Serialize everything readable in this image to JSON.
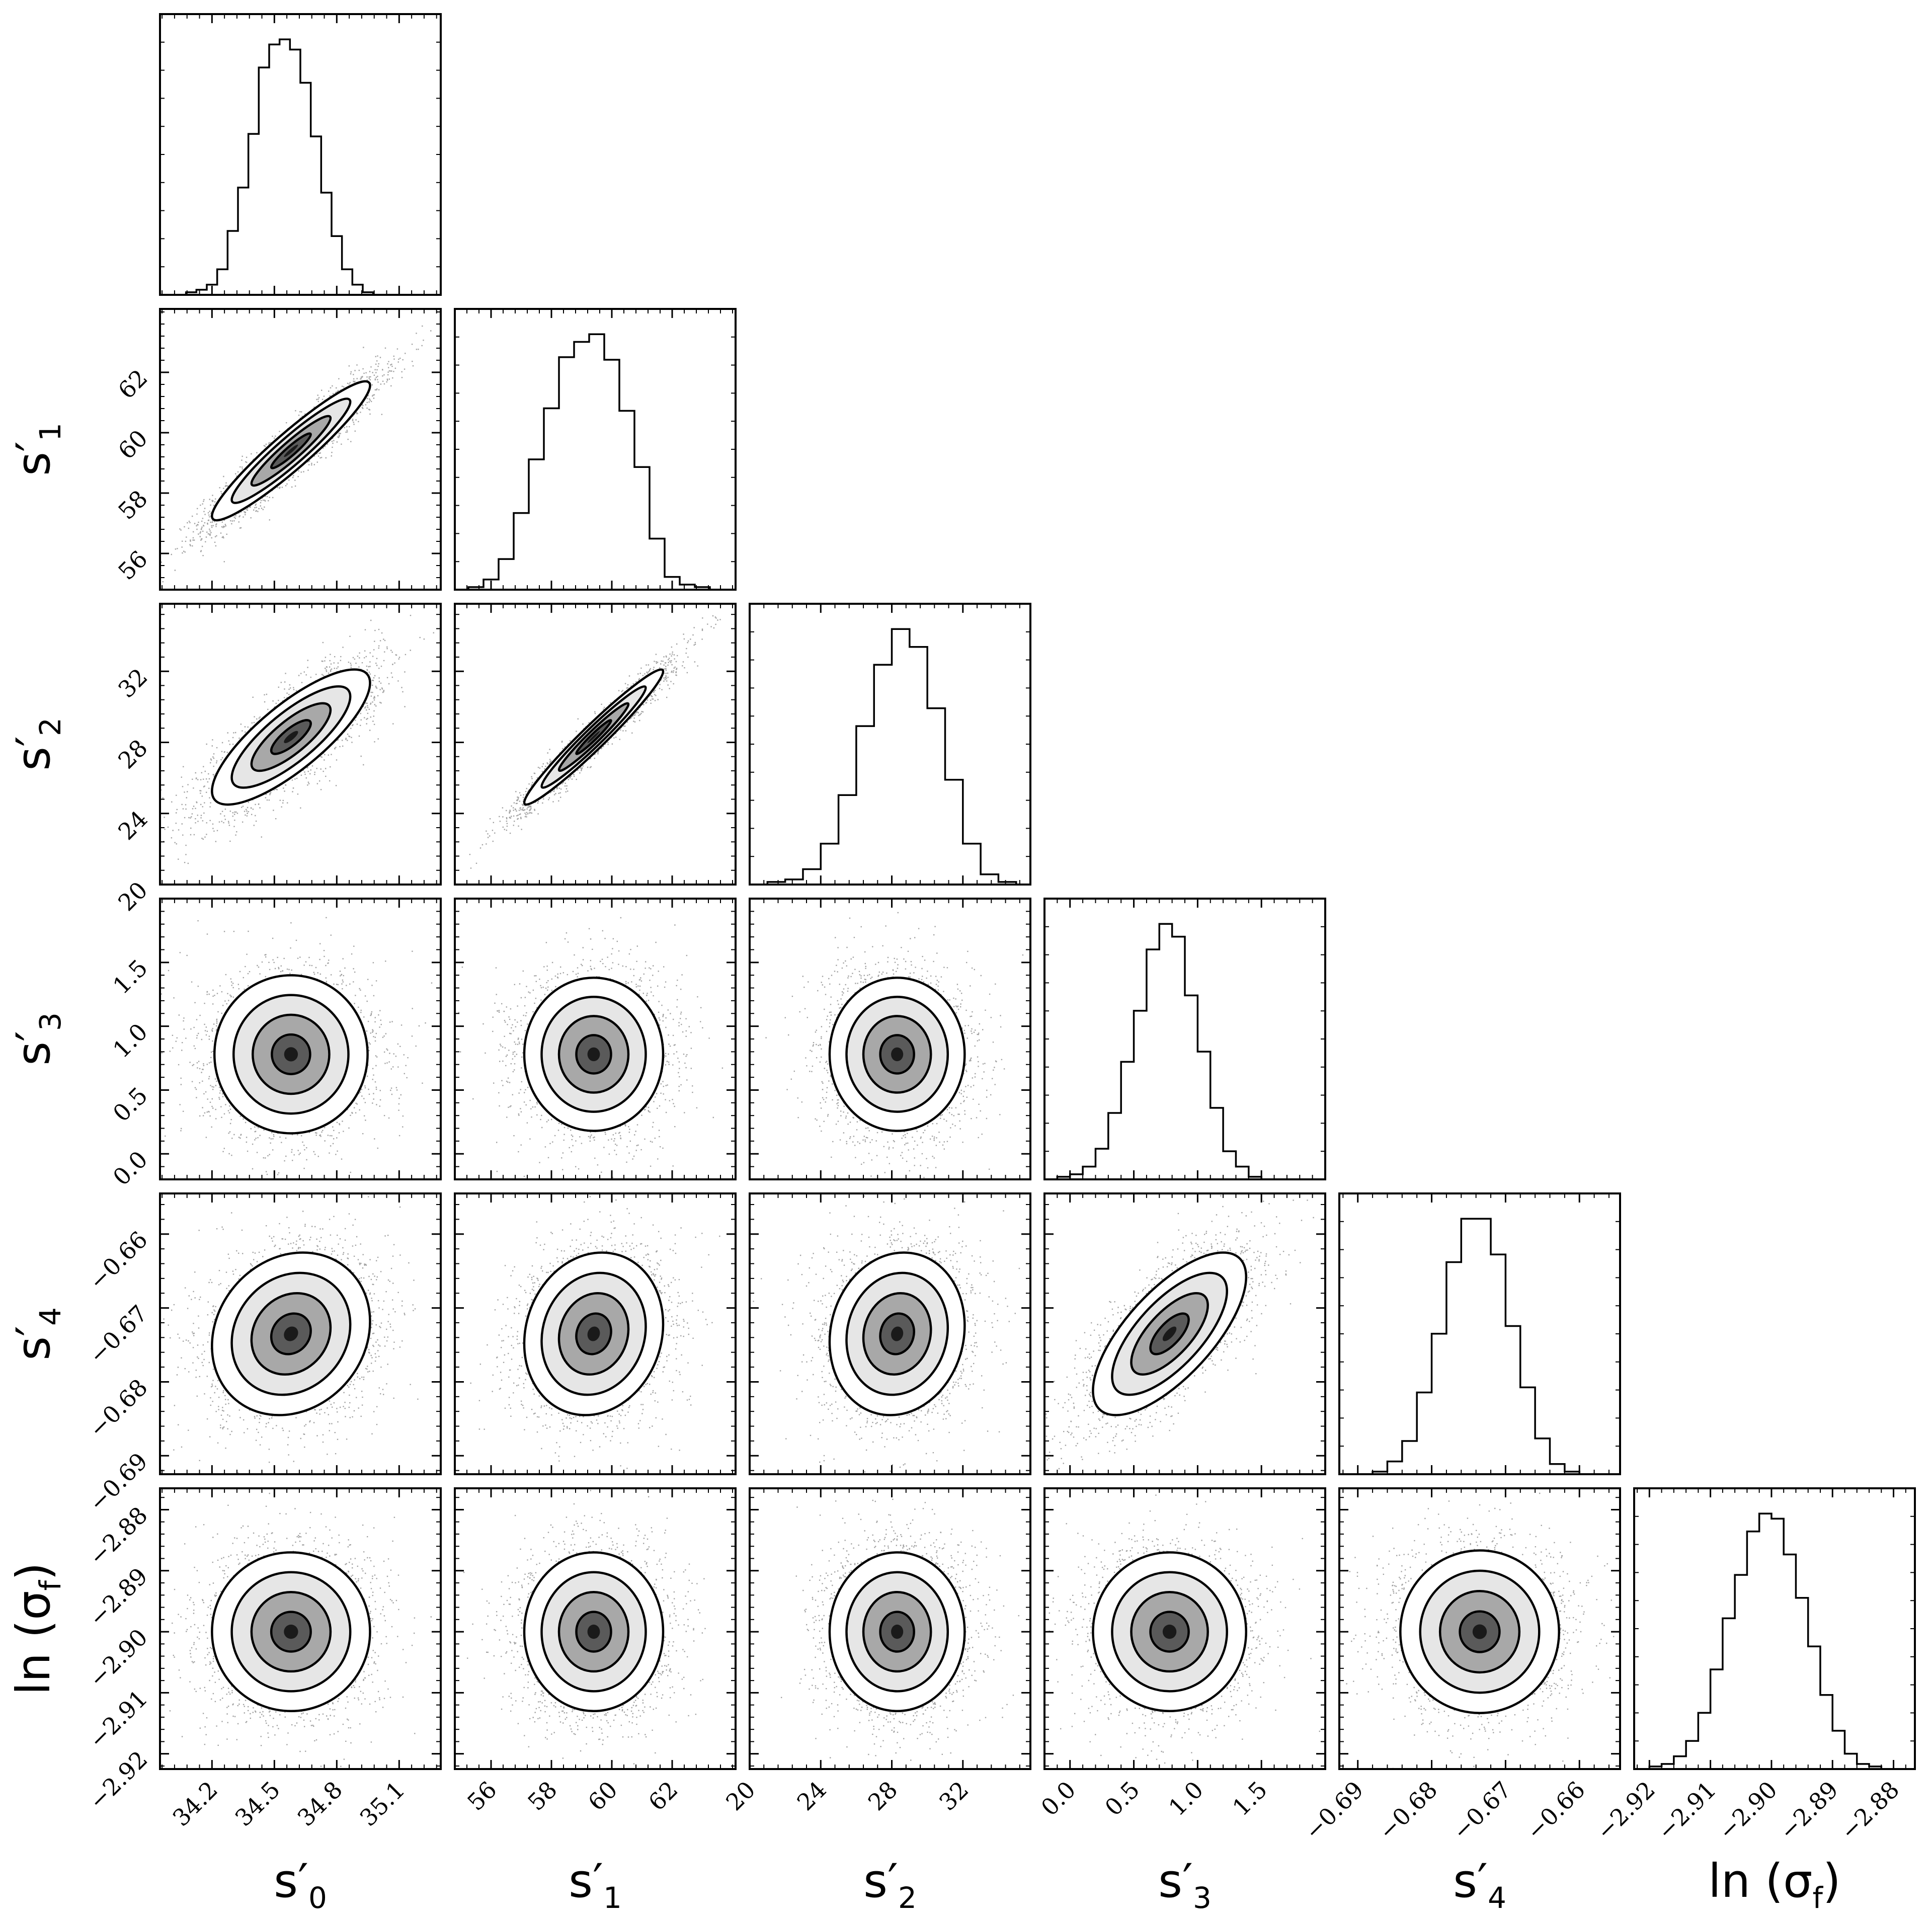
{
  "chart_data": {
    "type": "corner",
    "parameters": [
      {
        "id": "s0",
        "label": "s",
        "prime": "′",
        "sub": "0",
        "range": [
          33.95,
          35.3
        ],
        "ticks": [
          34.2,
          34.5,
          34.8,
          35.1
        ],
        "tick_labels": [
          "34.2",
          "34.5",
          "34.8",
          "35.1"
        ]
      },
      {
        "id": "s1",
        "label": "s",
        "prime": "′",
        "sub": "1",
        "range": [
          54.8,
          64.1
        ],
        "ticks": [
          56,
          58,
          60,
          62
        ],
        "tick_labels": [
          "56",
          "58",
          "60",
          "62"
        ]
      },
      {
        "id": "s2",
        "label": "s",
        "prime": "′",
        "sub": "2",
        "range": [
          20,
          35.8
        ],
        "ticks": [
          20,
          24,
          28,
          32
        ],
        "tick_labels": [
          "20",
          "24",
          "28",
          "32"
        ]
      },
      {
        "id": "s3",
        "label": "s",
        "prime": "′",
        "sub": "3",
        "range": [
          -0.2,
          2.0
        ],
        "ticks": [
          0.0,
          0.5,
          1.0,
          1.5
        ],
        "tick_labels": [
          "0.0",
          "0.5",
          "1.0",
          "1.5"
        ]
      },
      {
        "id": "s4",
        "label": "s",
        "prime": "′",
        "sub": "4",
        "range": [
          -0.6925,
          -0.6545
        ],
        "ticks": [
          -0.69,
          -0.68,
          -0.67,
          -0.66
        ],
        "tick_labels": [
          "−0.69",
          "−0.68",
          "−0.67",
          "−0.66"
        ]
      },
      {
        "id": "lnsf",
        "label": "ln (σ",
        "prime": "",
        "sub": "f",
        "suffix": ")",
        "range": [
          -2.9225,
          -2.8765
        ],
        "ticks": [
          -2.92,
          -2.91,
          -2.9,
          -2.89,
          -2.88
        ],
        "tick_labels": [
          "−2.92",
          "−2.91",
          "−2.90",
          "−2.89",
          "−2.88"
        ]
      }
    ],
    "marginals": [
      {
        "param": "s0",
        "bins": [
          34.1,
          34.15,
          34.2,
          34.25,
          34.3,
          34.35,
          34.4,
          34.45,
          34.5,
          34.55,
          34.6,
          34.65,
          34.7,
          34.75,
          34.8,
          34.85,
          34.9,
          34.95,
          35.0,
          35.05
        ],
        "heights": [
          1,
          2,
          4,
          10,
          25,
          42,
          63,
          89,
          98,
          100,
          96,
          83,
          62,
          40,
          23,
          10,
          4,
          1,
          0,
          0
        ]
      },
      {
        "param": "s1",
        "bins": [
          55.5,
          56.0,
          56.5,
          57.0,
          57.5,
          58.0,
          58.5,
          59.0,
          59.5,
          60.0,
          60.5,
          61.0,
          61.5,
          62.0,
          62.5,
          63.0
        ],
        "heights": [
          1,
          4,
          12,
          30,
          51,
          71,
          91,
          97,
          100,
          90,
          70,
          48,
          20,
          5,
          2,
          1
        ]
      },
      {
        "param": "s2",
        "bins": [
          21.5,
          22.5,
          23.5,
          24.5,
          25.5,
          26.5,
          27.5,
          28.5,
          29.5,
          30.5,
          31.5,
          32.5,
          33.5,
          34.5
        ],
        "heights": [
          1,
          2,
          6,
          16,
          35,
          62,
          86,
          100,
          93,
          69,
          41,
          16,
          4,
          1
        ]
      },
      {
        "param": "s3",
        "bins": [
          -0.15,
          -0.05,
          0.05,
          0.15,
          0.25,
          0.35,
          0.45,
          0.55,
          0.65,
          0.75,
          0.85,
          0.95,
          1.05,
          1.15,
          1.25,
          1.35,
          1.45,
          1.55
        ],
        "heights": [
          0,
          1,
          2,
          5,
          12,
          26,
          46,
          66,
          90,
          100,
          95,
          72,
          50,
          28,
          11,
          5,
          1,
          0
        ]
      },
      {
        "param": "s4",
        "bins": [
          -0.691,
          -0.689,
          -0.687,
          -0.685,
          -0.683,
          -0.681,
          -0.679,
          -0.677,
          -0.675,
          -0.673,
          -0.671,
          -0.669,
          -0.667,
          -0.665,
          -0.663,
          -0.661
        ],
        "heights": [
          0,
          0,
          1,
          5,
          13,
          32,
          55,
          83,
          100,
          100,
          86,
          58,
          34,
          14,
          4,
          1
        ]
      },
      {
        "param": "lnsf",
        "bins": [
          -2.921,
          -2.919,
          -2.917,
          -2.915,
          -2.913,
          -2.911,
          -2.909,
          -2.907,
          -2.905,
          -2.903,
          -2.901,
          -2.899,
          -2.897,
          -2.895,
          -2.893,
          -2.891,
          -2.889,
          -2.887,
          -2.885,
          -2.883
        ],
        "heights": [
          0,
          1,
          2,
          5,
          11,
          22,
          39,
          59,
          76,
          93,
          100,
          98,
          84,
          67,
          48,
          29,
          15,
          6,
          2,
          1
        ]
      }
    ],
    "joint_mean": {
      "s0": 34.58,
      "s1": 59.4,
      "s2": 28.3,
      "s3": 0.78,
      "s4": -0.6735,
      "lnsf": -2.9
    },
    "joint_std": {
      "s0": 0.19,
      "s1": 1.15,
      "s2": 1.9,
      "s3": 0.3,
      "s4": 0.0055,
      "lnsf": 0.0065
    },
    "correlations": [
      {
        "a": "s0",
        "b": "s1",
        "r": 0.94
      },
      {
        "a": "s0",
        "b": "s2",
        "r": 0.8
      },
      {
        "a": "s1",
        "b": "s2",
        "r": 0.97
      },
      {
        "a": "s0",
        "b": "s3",
        "r": 0.0
      },
      {
        "a": "s1",
        "b": "s3",
        "r": 0.0
      },
      {
        "a": "s2",
        "b": "s3",
        "r": 0.0
      },
      {
        "a": "s0",
        "b": "s4",
        "r": 0.15
      },
      {
        "a": "s1",
        "b": "s4",
        "r": 0.12
      },
      {
        "a": "s2",
        "b": "s4",
        "r": 0.1
      },
      {
        "a": "s3",
        "b": "s4",
        "r": 0.7
      },
      {
        "a": "s0",
        "b": "lnsf",
        "r": 0.0
      },
      {
        "a": "s1",
        "b": "lnsf",
        "r": 0.0
      },
      {
        "a": "s2",
        "b": "lnsf",
        "r": 0.0
      },
      {
        "a": "s3",
        "b": "lnsf",
        "r": 0.0
      },
      {
        "a": "s4",
        "b": "lnsf",
        "r": 0.0
      }
    ],
    "contour_levels_sigma": [
      0.5,
      1.0,
      1.5,
      2.0
    ],
    "grid": false,
    "legend": "none",
    "colors": {
      "hist": "#000000",
      "contour": "#000000",
      "points": "#555555",
      "density_dark": "#1a1a1a"
    }
  }
}
